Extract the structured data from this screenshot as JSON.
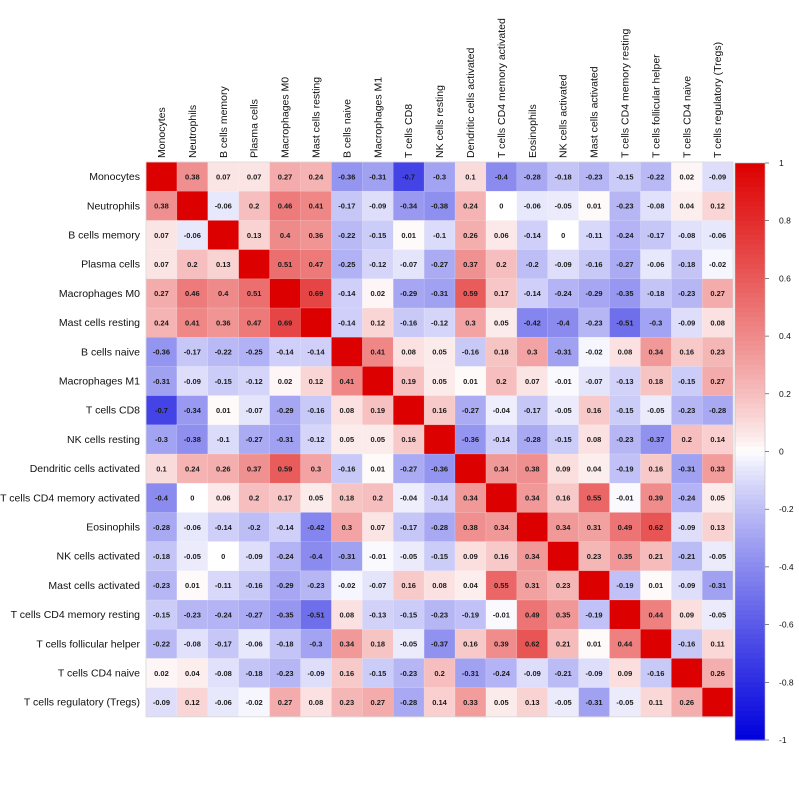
{
  "chart_data": {
    "type": "heatmap",
    "title": "",
    "labels": [
      "Monocytes",
      "Neutrophils",
      "B cells memory",
      "Plasma cells",
      "Macrophages M0",
      "Mast cells resting",
      "B cells naive",
      "Macrophages M1",
      "T cells CD8",
      "NK cells resting",
      "Dendritic cells activated",
      "T cells CD4 memory activated",
      "Eosinophils",
      "NK cells activated",
      "Mast cells activated",
      "T cells CD4 memory resting",
      "T cells follicular helper",
      "T cells CD4 naive",
      "T cells regulatory (Tregs)"
    ],
    "matrix": [
      [
        1,
        0.38,
        0.07,
        0.07,
        0.27,
        0.24,
        -0.36,
        -0.31,
        -0.7,
        -0.3,
        0.1,
        -0.4,
        -0.28,
        -0.18,
        -0.23,
        -0.15,
        -0.22,
        0.02,
        -0.09
      ],
      [
        0.38,
        1,
        -0.06,
        0.2,
        0.46,
        0.41,
        -0.17,
        -0.09,
        -0.34,
        -0.38,
        0.24,
        0,
        -0.06,
        -0.05,
        0.01,
        -0.23,
        -0.08,
        0.04,
        0.12
      ],
      [
        0.07,
        -0.06,
        1,
        0.13,
        0.4,
        0.36,
        -0.22,
        -0.15,
        0.01,
        -0.1,
        0.26,
        0.06,
        -0.14,
        0,
        -0.11,
        -0.24,
        -0.17,
        -0.08,
        -0.06
      ],
      [
        0.07,
        0.2,
        0.13,
        1,
        0.51,
        0.47,
        -0.25,
        -0.12,
        -0.07,
        -0.27,
        0.37,
        0.2,
        -0.2,
        -0.09,
        -0.16,
        -0.27,
        -0.06,
        -0.18,
        -0.02
      ],
      [
        0.27,
        0.46,
        0.4,
        0.51,
        1,
        0.69,
        -0.14,
        0.02,
        -0.29,
        -0.31,
        0.59,
        0.17,
        -0.14,
        -0.24,
        -0.29,
        -0.35,
        -0.18,
        -0.23,
        0.27
      ],
      [
        0.24,
        0.41,
        0.36,
        0.47,
        0.69,
        1,
        -0.14,
        0.12,
        -0.16,
        -0.12,
        0.3,
        0.05,
        -0.42,
        -0.4,
        -0.23,
        -0.51,
        -0.3,
        -0.09,
        0.08
      ],
      [
        -0.36,
        -0.17,
        -0.22,
        -0.25,
        -0.14,
        -0.14,
        1,
        0.41,
        0.08,
        0.05,
        -0.16,
        0.18,
        0.3,
        -0.31,
        -0.02,
        0.08,
        0.34,
        0.16,
        0.23
      ],
      [
        -0.31,
        -0.09,
        -0.15,
        -0.12,
        0.02,
        0.12,
        0.41,
        1,
        0.19,
        0.05,
        0.01,
        0.2,
        0.07,
        -0.01,
        -0.07,
        -0.13,
        0.18,
        -0.15,
        0.27
      ],
      [
        -0.7,
        -0.34,
        0.01,
        -0.07,
        -0.29,
        -0.16,
        0.08,
        0.19,
        1,
        0.16,
        -0.27,
        -0.04,
        -0.17,
        -0.05,
        0.16,
        -0.15,
        -0.05,
        -0.23,
        -0.28
      ],
      [
        -0.3,
        -0.38,
        -0.1,
        -0.27,
        -0.31,
        -0.12,
        0.05,
        0.05,
        0.16,
        1,
        -0.36,
        -0.14,
        -0.28,
        -0.15,
        0.08,
        -0.23,
        -0.37,
        0.2,
        0.14
      ],
      [
        0.1,
        0.24,
        0.26,
        0.37,
        0.59,
        0.3,
        -0.16,
        0.01,
        -0.27,
        -0.36,
        1,
        0.34,
        0.38,
        0.09,
        0.04,
        -0.19,
        0.16,
        -0.31,
        0.33
      ],
      [
        -0.4,
        0,
        0.06,
        0.2,
        0.17,
        0.05,
        0.18,
        0.2,
        -0.04,
        -0.14,
        0.34,
        1,
        0.34,
        0.16,
        0.55,
        -0.01,
        0.39,
        -0.24,
        0.05
      ],
      [
        -0.28,
        -0.06,
        -0.14,
        -0.2,
        -0.14,
        -0.42,
        0.3,
        0.07,
        -0.17,
        -0.28,
        0.38,
        0.34,
        1,
        0.34,
        0.31,
        0.49,
        0.62,
        -0.09,
        0.13
      ],
      [
        -0.18,
        -0.05,
        0,
        -0.09,
        -0.24,
        -0.4,
        -0.31,
        -0.01,
        -0.05,
        -0.15,
        0.09,
        0.16,
        0.34,
        1,
        0.23,
        0.35,
        0.21,
        -0.21,
        -0.05
      ],
      [
        -0.23,
        0.01,
        -0.11,
        -0.16,
        -0.29,
        -0.23,
        -0.02,
        -0.07,
        0.16,
        0.08,
        0.04,
        0.55,
        0.31,
        0.23,
        1,
        -0.19,
        0.01,
        -0.09,
        -0.31
      ],
      [
        -0.15,
        -0.23,
        -0.24,
        -0.27,
        -0.35,
        -0.51,
        0.08,
        -0.13,
        -0.15,
        -0.23,
        -0.19,
        -0.01,
        0.49,
        0.35,
        -0.19,
        1,
        0.44,
        0.09,
        -0.05
      ],
      [
        -0.22,
        -0.08,
        -0.17,
        -0.06,
        -0.18,
        -0.3,
        0.34,
        0.18,
        -0.05,
        -0.37,
        0.16,
        0.39,
        0.62,
        0.21,
        0.01,
        0.44,
        1,
        -0.16,
        0.11
      ],
      [
        0.02,
        0.04,
        -0.08,
        -0.18,
        -0.23,
        -0.09,
        0.16,
        -0.15,
        -0.23,
        0.2,
        -0.31,
        -0.24,
        -0.09,
        -0.21,
        -0.09,
        0.09,
        -0.16,
        1,
        0.26
      ],
      [
        -0.09,
        0.12,
        -0.06,
        -0.02,
        0.27,
        0.08,
        0.23,
        0.27,
        -0.28,
        0.14,
        0.33,
        0.05,
        0.13,
        -0.05,
        -0.31,
        -0.05,
        0.11,
        0.26,
        1
      ]
    ],
    "colorbar": {
      "range": [
        -1,
        1
      ],
      "ticks": [
        "1",
        "0.8",
        "0.6",
        "0.4",
        "0.2",
        "0",
        "-0.2",
        "-0.4",
        "-0.6",
        "-0.8",
        "-1"
      ],
      "low_color": "#0000dd",
      "mid_color": "#ffffff",
      "high_color": "#dd0000"
    },
    "diagonal_value_label_shown": false,
    "grid": true
  }
}
